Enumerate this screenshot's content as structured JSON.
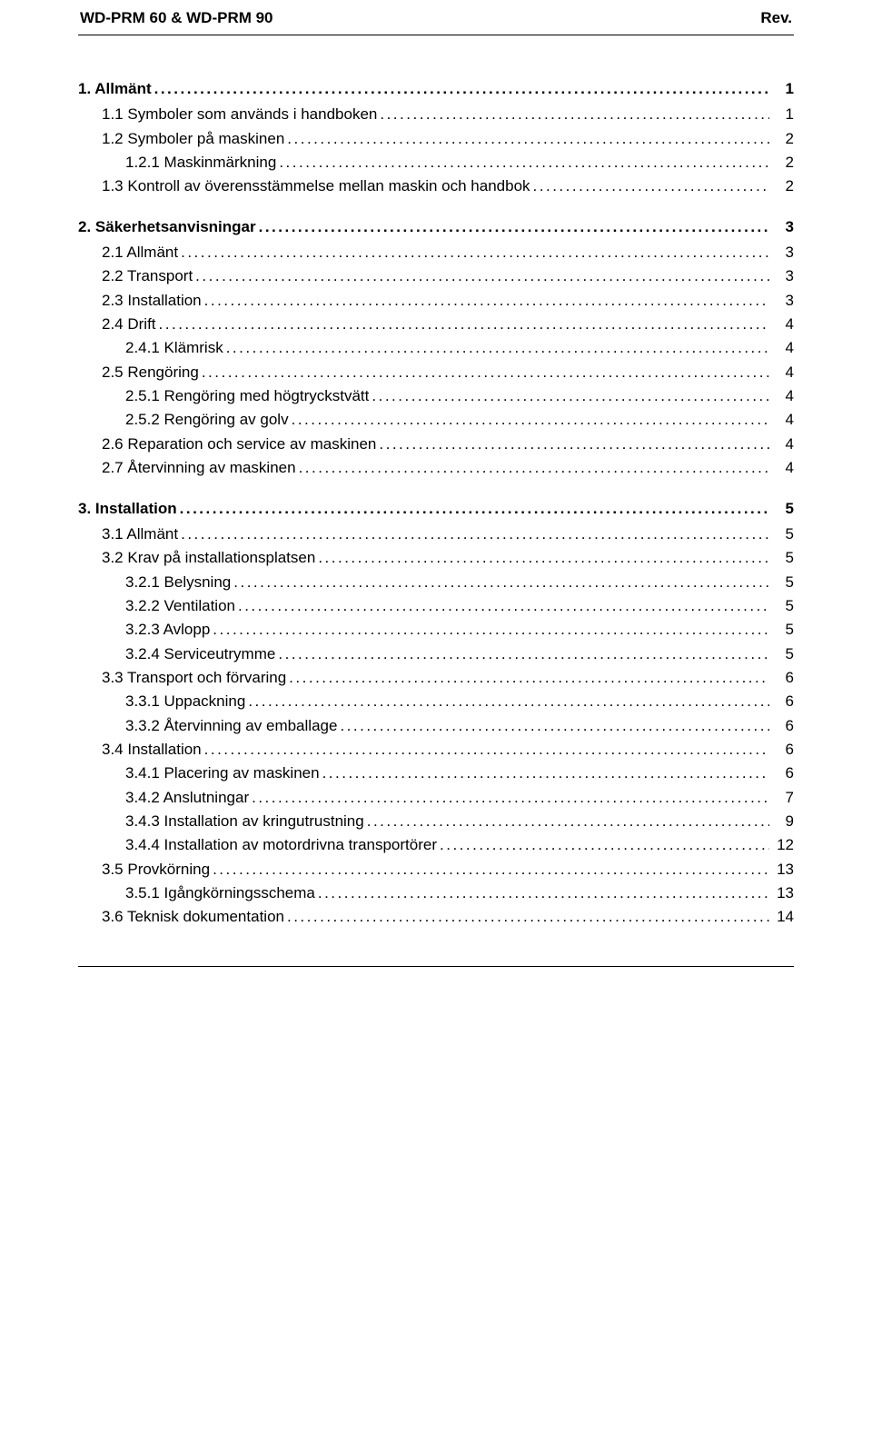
{
  "header": {
    "left": "WD-PRM 60 & WD-PRM 90",
    "right": "Rev."
  },
  "toc": [
    {
      "level": 0,
      "label": "1. Allmänt",
      "page": "1"
    },
    {
      "level": 1,
      "label": "1.1 Symboler som används i handboken",
      "page": "1"
    },
    {
      "level": 1,
      "label": "1.2 Symboler på maskinen",
      "page": "2"
    },
    {
      "level": 2,
      "label": "1.2.1 Maskinmärkning",
      "page": "2"
    },
    {
      "level": 1,
      "label": "1.3 Kontroll av överensstämmelse mellan maskin och handbok",
      "page": "2"
    },
    {
      "level": 0,
      "label": "2. Säkerhetsanvisningar",
      "page": "3"
    },
    {
      "level": 1,
      "label": "2.1 Allmänt",
      "page": "3"
    },
    {
      "level": 1,
      "label": "2.2 Transport",
      "page": "3"
    },
    {
      "level": 1,
      "label": "2.3 Installation",
      "page": "3"
    },
    {
      "level": 1,
      "label": "2.4 Drift",
      "page": "4"
    },
    {
      "level": 2,
      "label": "2.4.1 Klämrisk",
      "page": "4"
    },
    {
      "level": 1,
      "label": "2.5 Rengöring",
      "page": "4"
    },
    {
      "level": 2,
      "label": "2.5.1 Rengöring med högtryckstvätt",
      "page": "4"
    },
    {
      "level": 2,
      "label": "2.5.2 Rengöring av golv",
      "page": "4"
    },
    {
      "level": 1,
      "label": "2.6 Reparation och service av maskinen",
      "page": "4"
    },
    {
      "level": 1,
      "label": "2.7 Återvinning av maskinen",
      "page": "4"
    },
    {
      "level": 0,
      "label": "3. Installation",
      "page": "5"
    },
    {
      "level": 1,
      "label": "3.1 Allmänt",
      "page": "5"
    },
    {
      "level": 1,
      "label": "3.2 Krav på installationsplatsen",
      "page": "5"
    },
    {
      "level": 2,
      "label": "3.2.1 Belysning",
      "page": "5"
    },
    {
      "level": 2,
      "label": "3.2.2 Ventilation",
      "page": "5"
    },
    {
      "level": 2,
      "label": "3.2.3 Avlopp",
      "page": "5"
    },
    {
      "level": 2,
      "label": "3.2.4 Serviceutrymme",
      "page": "5"
    },
    {
      "level": 1,
      "label": "3.3 Transport och förvaring",
      "page": "6"
    },
    {
      "level": 2,
      "label": "3.3.1 Uppackning",
      "page": "6"
    },
    {
      "level": 2,
      "label": "3.3.2 Återvinning av emballage",
      "page": "6"
    },
    {
      "level": 1,
      "label": "3.4 Installation",
      "page": "6"
    },
    {
      "level": 2,
      "label": "3.4.1 Placering av maskinen",
      "page": "6"
    },
    {
      "level": 2,
      "label": "3.4.2 Anslutningar",
      "page": "7"
    },
    {
      "level": 2,
      "label": "3.4.3 Installation av kringutrustning",
      "page": "9"
    },
    {
      "level": 2,
      "label": "3.4.4 Installation av motordrivna transportörer",
      "page": "12"
    },
    {
      "level": 1,
      "label": "3.5 Provkörning",
      "page": "13"
    },
    {
      "level": 2,
      "label": "3.5.1 Igångkörningsschema",
      "page": "13"
    },
    {
      "level": 1,
      "label": "3.6 Teknisk dokumentation",
      "page": "14"
    }
  ]
}
